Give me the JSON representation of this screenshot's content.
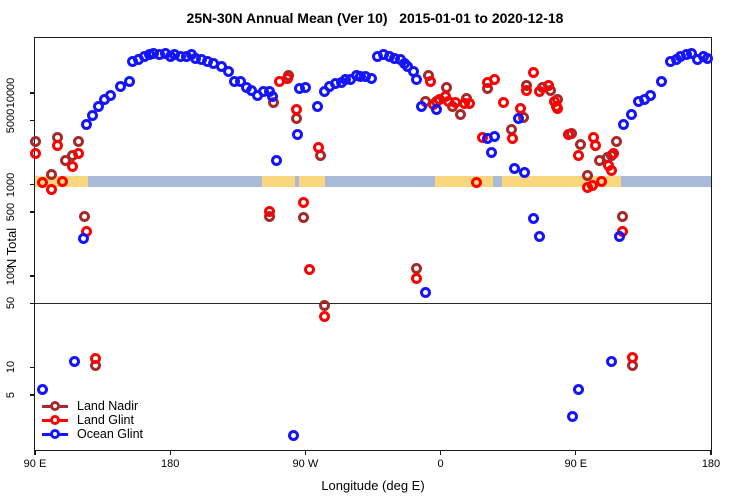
{
  "title": "25N-30N Annual Mean (Ver 10)   2015-01-01 to 2020-12-18",
  "axes": {
    "x": {
      "label": "Longitude (deg E)",
      "span_deg": 450,
      "ticks": [
        {
          "pos": 0,
          "label": "90 E"
        },
        {
          "pos": 90,
          "label": "180"
        },
        {
          "pos": 180,
          "label": "90 W"
        },
        {
          "pos": 270,
          "label": "0"
        },
        {
          "pos": 360,
          "label": "90 E"
        },
        {
          "pos": 450,
          "label": "180"
        }
      ]
    },
    "y": {
      "label": "N Total",
      "scale": "log",
      "range": [
        1.25,
        40000
      ],
      "ticks": [
        {
          "value": 10000,
          "label": "10000"
        },
        {
          "value": 5000,
          "label": "5000"
        },
        {
          "value": 1000,
          "label": "1000"
        },
        {
          "value": 500,
          "label": "500"
        },
        {
          "value": 100,
          "label": "100"
        },
        {
          "value": 50,
          "label": "50"
        },
        {
          "value": 10,
          "label": "10"
        },
        {
          "value": 5,
          "label": "5"
        }
      ]
    }
  },
  "colors": {
    "land_nadir": "#A52A2A",
    "land_glint": "#FF0000",
    "ocean_glint": "#1414FF",
    "band_land": "#FAD77E",
    "band_ocean": "#AABBD9",
    "reference_line": "#2b2b2b",
    "axis": "#1a1a1a"
  },
  "reference_line": {
    "value": 50
  },
  "map_band": {
    "value_range": [
      950,
      1250
    ],
    "segments": [
      {
        "from": 0,
        "to": 35,
        "surface": "land"
      },
      {
        "from": 35,
        "to": 151,
        "surface": "ocean"
      },
      {
        "from": 151,
        "to": 173,
        "surface": "land"
      },
      {
        "from": 173,
        "to": 176,
        "surface": "ocean"
      },
      {
        "from": 176,
        "to": 193,
        "surface": "land"
      },
      {
        "from": 193,
        "to": 266,
        "surface": "ocean"
      },
      {
        "from": 266,
        "to": 305,
        "surface": "land"
      },
      {
        "from": 305,
        "to": 311,
        "surface": "ocean"
      },
      {
        "from": 311,
        "to": 390,
        "surface": "land"
      },
      {
        "from": 390,
        "to": 450,
        "surface": "ocean"
      }
    ]
  },
  "legend": [
    {
      "key": "land_nadir",
      "label": "Land Nadir"
    },
    {
      "key": "land_glint",
      "label": "Land Glint"
    },
    {
      "key": "ocean_glint",
      "label": "Ocean Glint"
    }
  ],
  "chart_data": {
    "type": "scatter",
    "x_unit": "degrees east of left edge (left edge = 90E, axis wraps 450 deg)",
    "series": [
      {
        "name": "Land Nadir",
        "color_key": "land_nadir",
        "points": [
          [
            0,
            2990
          ],
          [
            11,
            1300
          ],
          [
            15,
            3300
          ],
          [
            20,
            1850
          ],
          [
            25,
            2050
          ],
          [
            29,
            2990
          ],
          [
            33,
            452
          ],
          [
            40,
            10.4
          ],
          [
            156,
            452
          ],
          [
            159,
            7980
          ],
          [
            169,
            15700
          ],
          [
            174,
            5330
          ],
          [
            179,
            441
          ],
          [
            190,
            2050
          ],
          [
            193,
            47
          ],
          [
            254,
            122
          ],
          [
            260,
            8180
          ],
          [
            262,
            15700
          ],
          [
            267,
            8180
          ],
          [
            274,
            11600
          ],
          [
            278,
            7210
          ],
          [
            283,
            5900
          ],
          [
            287,
            8830
          ],
          [
            301,
            11100
          ],
          [
            317,
            4040
          ],
          [
            325,
            5470
          ],
          [
            327,
            12200
          ],
          [
            338,
            11600
          ],
          [
            343,
            10800
          ],
          [
            348,
            8400
          ],
          [
            357,
            3650
          ],
          [
            363,
            2770
          ],
          [
            368,
            1270
          ],
          [
            376,
            1810
          ],
          [
            381,
            1950
          ],
          [
            384,
            2100
          ],
          [
            387,
            2990
          ],
          [
            391,
            452
          ],
          [
            398,
            10.4
          ]
        ]
      },
      {
        "name": "Land Glint",
        "color_key": "land_glint",
        "points": [
          [
            0,
            2160
          ],
          [
            5,
            1060
          ],
          [
            11,
            871
          ],
          [
            15,
            2640
          ],
          [
            18,
            1090
          ],
          [
            25,
            1590
          ],
          [
            29,
            2210
          ],
          [
            34,
            310
          ],
          [
            40,
            12.4
          ],
          [
            156,
            513
          ],
          [
            163,
            13500
          ],
          [
            168,
            14600
          ],
          [
            174,
            6530
          ],
          [
            179,
            628
          ],
          [
            183,
            119
          ],
          [
            189,
            2570
          ],
          [
            193,
            36
          ],
          [
            254,
            93
          ],
          [
            263,
            13500
          ],
          [
            265,
            7590
          ],
          [
            269,
            8400
          ],
          [
            273,
            9060
          ],
          [
            275,
            8180
          ],
          [
            280,
            7980
          ],
          [
            286,
            7780
          ],
          [
            289,
            7780
          ],
          [
            294,
            1060
          ],
          [
            298,
            3300
          ],
          [
            301,
            12900
          ],
          [
            306,
            14200
          ],
          [
            312,
            7980
          ],
          [
            318,
            3220
          ],
          [
            323,
            6700
          ],
          [
            327,
            10800
          ],
          [
            332,
            16600
          ],
          [
            336,
            10300
          ],
          [
            342,
            12200
          ],
          [
            346,
            8180
          ],
          [
            347,
            7040
          ],
          [
            348,
            6700
          ],
          [
            355,
            3560
          ],
          [
            362,
            2100
          ],
          [
            368,
            916
          ],
          [
            371,
            964
          ],
          [
            372,
            3300
          ],
          [
            373,
            2640
          ],
          [
            377,
            1090
          ],
          [
            382,
            1630
          ],
          [
            384,
            1440
          ],
          [
            385,
            2210
          ],
          [
            391,
            310
          ],
          [
            398,
            12.7
          ]
        ]
      },
      {
        "name": "Ocean Glint",
        "color_key": "ocean_glint",
        "points": [
          [
            5,
            5.8
          ],
          [
            26,
            11.5
          ],
          [
            32,
            260
          ],
          [
            34,
            4480
          ],
          [
            38,
            5750
          ],
          [
            42,
            7210
          ],
          [
            46,
            8400
          ],
          [
            50,
            9500
          ],
          [
            57,
            11900
          ],
          [
            63,
            13500
          ],
          [
            65,
            21900
          ],
          [
            69,
            23000
          ],
          [
            73,
            24800
          ],
          [
            76,
            26100
          ],
          [
            79,
            27400
          ],
          [
            83,
            26100
          ],
          [
            87,
            27400
          ],
          [
            90,
            25400
          ],
          [
            93,
            26100
          ],
          [
            97,
            24800
          ],
          [
            101,
            25400
          ],
          [
            104,
            26100
          ],
          [
            107,
            24100
          ],
          [
            111,
            23000
          ],
          [
            115,
            22400
          ],
          [
            119,
            21300
          ],
          [
            124,
            19300
          ],
          [
            129,
            17000
          ],
          [
            133,
            13500
          ],
          [
            137,
            13500
          ],
          [
            141,
            11600
          ],
          [
            144,
            10800
          ],
          [
            148,
            9290
          ],
          [
            152,
            10500
          ],
          [
            156,
            10300
          ],
          [
            158,
            9060
          ],
          [
            161,
            1810
          ],
          [
            172,
            1.8
          ],
          [
            175,
            3480
          ],
          [
            176,
            11100
          ],
          [
            180,
            11600
          ],
          [
            188,
            7210
          ],
          [
            193,
            10500
          ],
          [
            196,
            11900
          ],
          [
            200,
            12600
          ],
          [
            204,
            13200
          ],
          [
            207,
            13900
          ],
          [
            210,
            14200
          ],
          [
            214,
            15400
          ],
          [
            217,
            15000
          ],
          [
            220,
            15000
          ],
          [
            224,
            14600
          ],
          [
            228,
            25400
          ],
          [
            232,
            26100
          ],
          [
            236,
            25400
          ],
          [
            239,
            24100
          ],
          [
            243,
            23000
          ],
          [
            246,
            21300
          ],
          [
            248,
            19300
          ],
          [
            252,
            17000
          ],
          [
            254,
            14200
          ],
          [
            257,
            7040
          ],
          [
            260,
            66
          ],
          [
            267,
            6530
          ],
          [
            301,
            3220
          ],
          [
            304,
            2260
          ],
          [
            306,
            3390
          ],
          [
            319,
            1480
          ],
          [
            322,
            5330
          ],
          [
            326,
            1340
          ],
          [
            332,
            420
          ],
          [
            336,
            267
          ],
          [
            358,
            2.9
          ],
          [
            362,
            5.7
          ],
          [
            384,
            11.5
          ],
          [
            389,
            267
          ],
          [
            392,
            4480
          ],
          [
            397,
            5900
          ],
          [
            402,
            8180
          ],
          [
            406,
            8610
          ],
          [
            410,
            9500
          ],
          [
            417,
            13500
          ],
          [
            423,
            22400
          ],
          [
            427,
            23500
          ],
          [
            430,
            24800
          ],
          [
            434,
            26700
          ],
          [
            437,
            27400
          ],
          [
            441,
            23500
          ],
          [
            445,
            25400
          ],
          [
            448,
            24100
          ]
        ]
      }
    ]
  }
}
